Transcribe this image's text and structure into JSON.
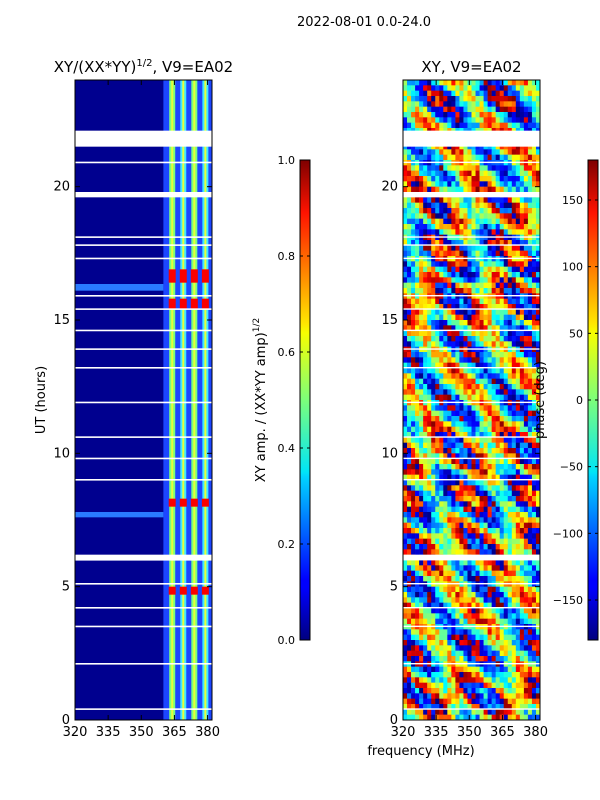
{
  "suptitle": "2022-08-01 0.0-24.0",
  "xlabel": "frequency (MHz)",
  "chart_data": [
    {
      "type": "heatmap",
      "title_main": "XY/(XX*YY)",
      "title_sup": "1/2",
      "title_rest": ", V9=EA02",
      "ylabel": "UT (hours)",
      "x_range": [
        320,
        382
      ],
      "y_range": [
        0,
        24
      ],
      "xticks": [
        320,
        335,
        350,
        365,
        380
      ],
      "yticks": [
        0,
        5,
        10,
        15,
        20
      ],
      "band_start_mhz": 360,
      "channel_columns_mhz": [
        364,
        369,
        374,
        379
      ],
      "blank_rows_ut": [
        0.4,
        2.1,
        3.5,
        4.2,
        5.1,
        6.0,
        9.0,
        9.8,
        10.6,
        11.9,
        13.2,
        13.9,
        14.6,
        15.4,
        15.9,
        17.3,
        17.8,
        18.1,
        20.9
      ],
      "blank_bands_ut": [
        [
          21.5,
          22.1
        ],
        [
          19.6,
          19.8
        ],
        [
          6.0,
          6.2
        ]
      ],
      "high_amp_rows_ut": [
        [
          16.4,
          16.9
        ],
        [
          15.4,
          15.8
        ],
        [
          8.0,
          8.3
        ],
        [
          4.7,
          5.0
        ]
      ],
      "colorbar": {
        "label": "XY amp. / (XX*YY amp)",
        "label_sup": "1/2",
        "range": [
          0.0,
          1.0
        ],
        "ticks": [
          0.0,
          0.2,
          0.4,
          0.6,
          0.8,
          1.0
        ],
        "tick_labels": [
          "0.0",
          "0.2",
          "0.4",
          "0.6",
          "0.8",
          "1.0"
        ]
      }
    },
    {
      "type": "heatmap",
      "title": "XY, V9=EA02",
      "x_range": [
        320,
        382
      ],
      "y_range": [
        0,
        24
      ],
      "xticks": [
        320,
        335,
        350,
        365,
        380
      ],
      "yticks": [
        0,
        5,
        10,
        15,
        20
      ],
      "blank_bands_ut": [
        [
          21.5,
          22.1
        ],
        [
          19.6,
          19.8
        ],
        [
          6.0,
          6.2
        ]
      ],
      "colorbar": {
        "label": "phase (deg)",
        "range": [
          -180,
          180
        ],
        "ticks": [
          150,
          100,
          50,
          0,
          -50,
          -100,
          -150
        ],
        "tick_labels": [
          "150",
          "100",
          "50",
          "0",
          "−50",
          "−100",
          "−150"
        ]
      }
    }
  ]
}
